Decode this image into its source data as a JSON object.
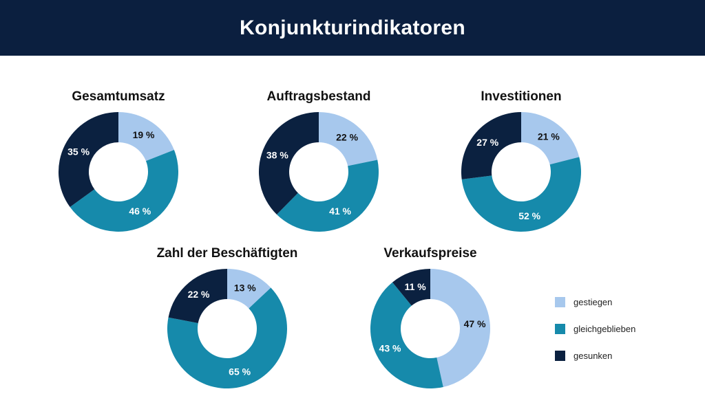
{
  "header": {
    "title": "Konjunkturindikatoren"
  },
  "legend": {
    "items": [
      {
        "label": "gestiegen",
        "color": "#a7c8ed"
      },
      {
        "label": "gleichgeblieben",
        "color": "#168aab"
      },
      {
        "label": "gesunken",
        "color": "#0b2140"
      }
    ]
  },
  "chart_data": [
    {
      "type": "pie",
      "title": "Gesamtumsatz",
      "categories": [
        "gestiegen",
        "gleichgeblieben",
        "gesunken"
      ],
      "values": [
        19,
        46,
        35
      ],
      "labels": [
        "19 %",
        "46 %",
        "35 %"
      ]
    },
    {
      "type": "pie",
      "title": "Auftragsbestand",
      "categories": [
        "gestiegen",
        "gleichgeblieben",
        "gesunken"
      ],
      "values": [
        22,
        41,
        38
      ],
      "labels": [
        "22 %",
        "41 %",
        "38 %"
      ]
    },
    {
      "type": "pie",
      "title": "Investitionen",
      "categories": [
        "gestiegen",
        "gleichgeblieben",
        "gesunken"
      ],
      "values": [
        21,
        52,
        27
      ],
      "labels": [
        "21 %",
        "52 %",
        "27 %"
      ]
    },
    {
      "type": "pie",
      "title": "Zahl der Beschäftigten",
      "categories": [
        "gestiegen",
        "gleichgeblieben",
        "gesunken"
      ],
      "values": [
        13,
        65,
        22
      ],
      "labels": [
        "13 %",
        "65 %",
        "22 %"
      ]
    },
    {
      "type": "pie",
      "title": "Verkaufspreise",
      "categories": [
        "gestiegen",
        "gleichgeblieben",
        "gesunken"
      ],
      "values": [
        47,
        43,
        11
      ],
      "labels": [
        "47 %",
        "43 %",
        "11 %"
      ]
    }
  ]
}
